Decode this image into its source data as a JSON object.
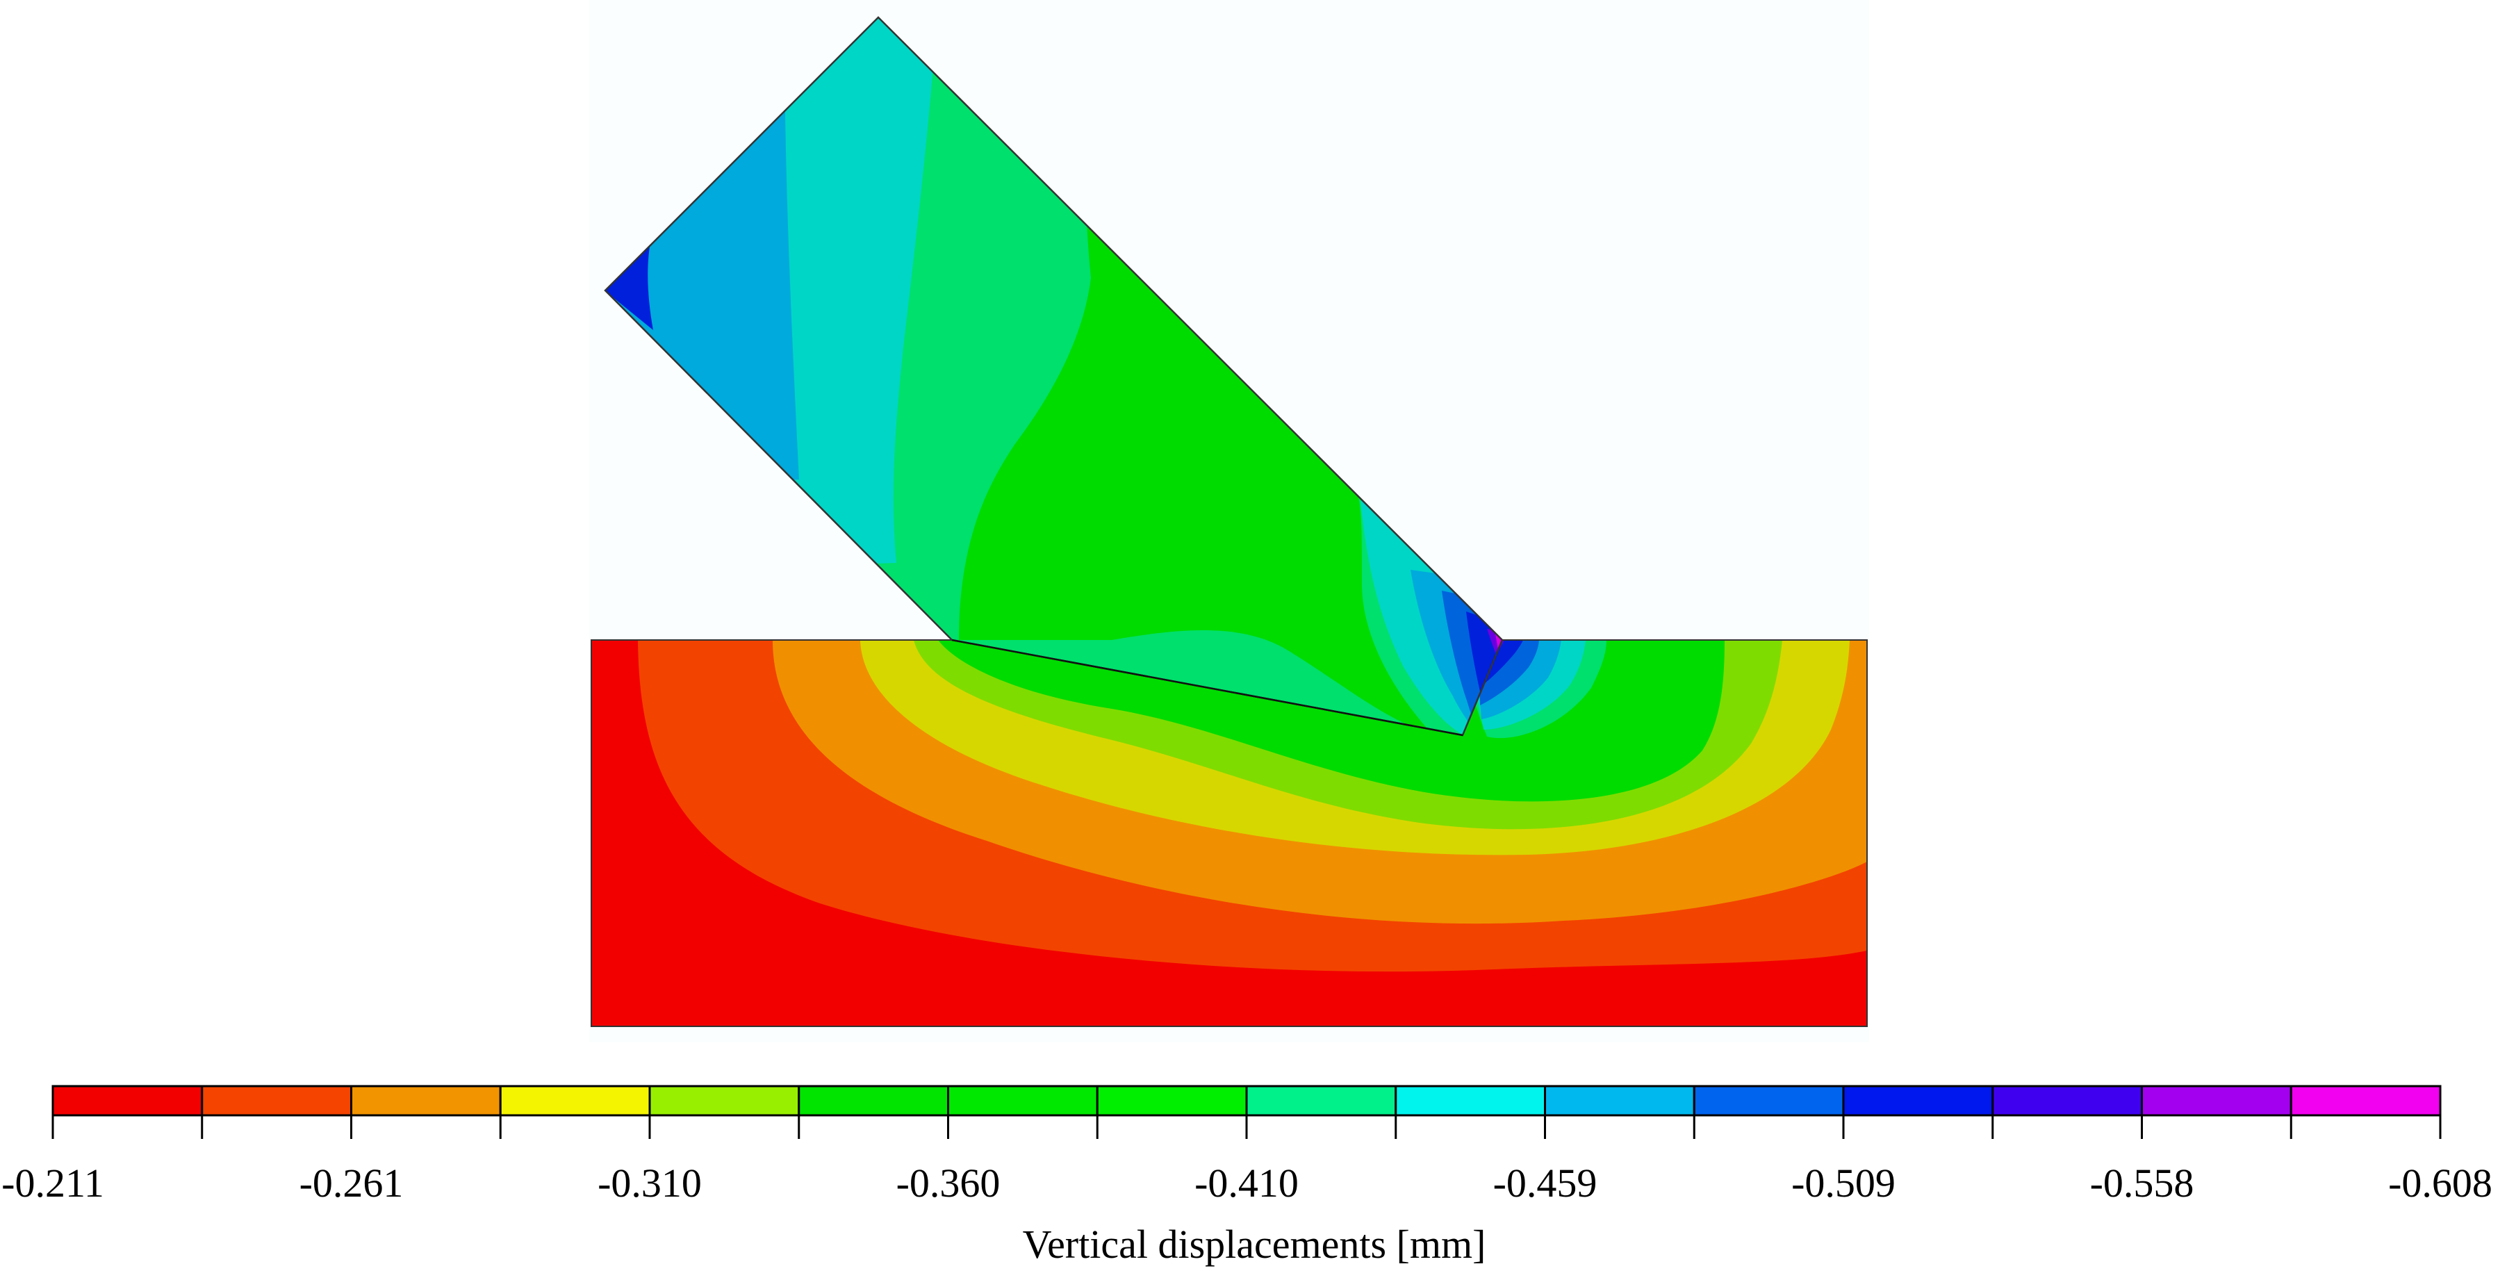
{
  "figure": {
    "colorbar": {
      "bands": [
        "#f20000",
        "#f44400",
        "#f29400",
        "#f4f400",
        "#98f000",
        "#00e400",
        "#00e800",
        "#00ee00",
        "#00f08a",
        "#00f4ee",
        "#00b8ee",
        "#0064ee",
        "#0018ee",
        "#4000f0",
        "#a400f0",
        "#f200f0"
      ],
      "tick_labels": [
        "-0.211",
        "-0.261",
        "-0.310",
        "-0.360",
        "-0.410",
        "-0.459",
        "-0.509",
        "-0.558",
        "-0.608"
      ],
      "title": "Vertical displacements  [mm]"
    },
    "contour_colors": {
      "c1": "#f20000",
      "c2": "#f34300",
      "c3": "#f09000",
      "c4": "#d7d700",
      "c5": "#7fdc00",
      "c6": "#00dc00",
      "c7": "#00e06c",
      "c8": "#00d6c6",
      "c9": "#00aadc",
      "c10": "#0064dc",
      "c11": "#0020dc",
      "c12": "#6a00e0",
      "c13": "#d800e0"
    },
    "background": "#fbfefe"
  }
}
